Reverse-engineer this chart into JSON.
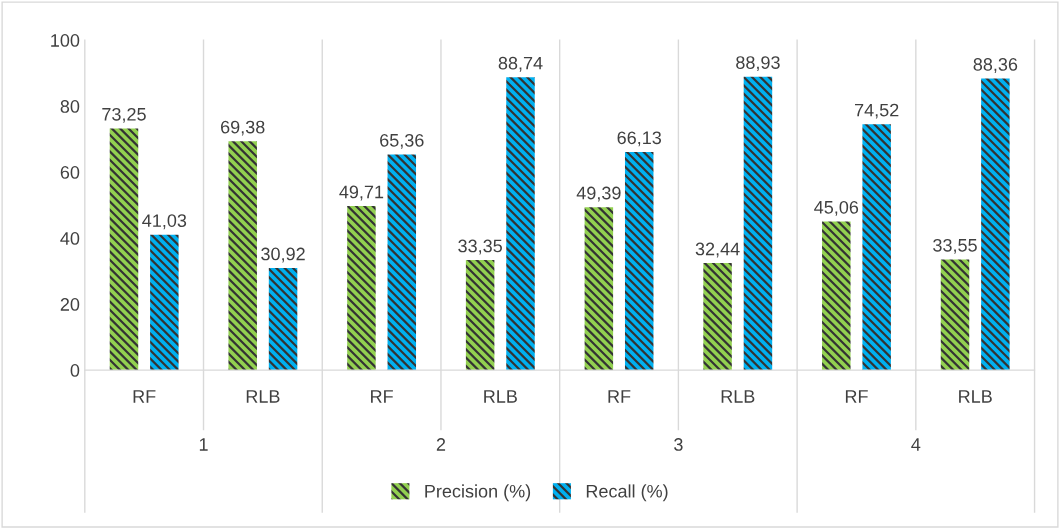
{
  "chart_data": {
    "type": "bar",
    "categories": [
      "RF",
      "RLB",
      "RF",
      "RLB",
      "RF",
      "RLB",
      "RF",
      "RLB"
    ],
    "series": [
      {
        "name": "Precision (%)",
        "color": "#92d050",
        "values": [
          73.25,
          69.38,
          49.71,
          33.35,
          49.39,
          32.44,
          45.06,
          33.55
        ],
        "value_labels": [
          "73,25",
          "69,38",
          "49,71",
          "33,35",
          "49,39",
          "32,44",
          "45,06",
          "33,55"
        ]
      },
      {
        "name": "Recall (%)",
        "color": "#00b0f0",
        "values": [
          41.03,
          30.92,
          65.36,
          88.74,
          66.13,
          88.93,
          74.52,
          88.36
        ],
        "value_labels": [
          "41,03",
          "30,92",
          "65,36",
          "88,74",
          "66,13",
          "88,93",
          "74,52",
          "88,36"
        ]
      }
    ],
    "annotations": [
      "1",
      "2",
      "3",
      "4"
    ],
    "ylim": [
      0,
      100
    ],
    "yticks": [
      0,
      20,
      40,
      60,
      80,
      100
    ],
    "grid": "x",
    "legend": "bottom"
  }
}
